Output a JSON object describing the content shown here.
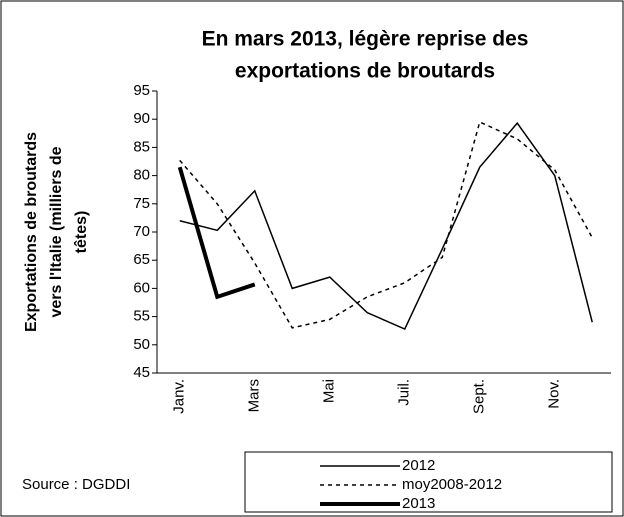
{
  "chart_data": {
    "type": "line",
    "title": [
      "En mars 2013, légère reprise des",
      "exportations de broutards"
    ],
    "y_label": [
      "Exportations de broutards",
      "vers l'Italie (milliers de",
      "têtes)"
    ],
    "source": "Source : DGDDI",
    "categories": [
      "Janv.",
      null,
      "Mars",
      null,
      "Mai",
      null,
      "Juil.",
      null,
      "Sept.",
      null,
      "Nov.",
      null
    ],
    "series": [
      {
        "name": "2012",
        "color": "#000000",
        "style": "solid",
        "width": 1.5,
        "values": [
          72,
          70.3,
          77.3,
          60,
          62,
          55.7,
          52.8,
          67,
          81.5,
          89.3,
          80,
          54
        ]
      },
      {
        "name": "moy2008-2012",
        "color": "#000000",
        "style": "dashed",
        "width": 1.5,
        "values": [
          82.7,
          75,
          64.5,
          53,
          54.5,
          58.5,
          61,
          65.5,
          89.5,
          86.5,
          81,
          69
        ]
      },
      {
        "name": "2013",
        "color": "#000000",
        "style": "solid",
        "width": 4,
        "values": [
          81.5,
          58.5,
          60.7,
          null,
          null,
          null,
          null,
          null,
          null,
          null,
          null,
          null
        ]
      }
    ],
    "ylim": [
      45,
      95
    ],
    "yticks": [
      45,
      50,
      55,
      60,
      65,
      70,
      75,
      80,
      85,
      90,
      95
    ],
    "grid": false,
    "legend": "bottom"
  }
}
